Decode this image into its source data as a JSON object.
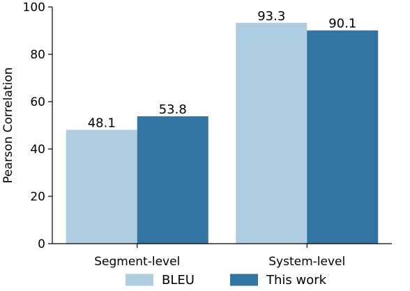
{
  "chart_data": {
    "type": "bar",
    "title": "",
    "xlabel": "",
    "ylabel": "Pearson Correlation",
    "ylim": [
      0,
      100
    ],
    "yticks": [
      0,
      20,
      40,
      60,
      80,
      100
    ],
    "grid": false,
    "legend_position": "bottom",
    "categories": [
      "Segment-level",
      "System-level"
    ],
    "series": [
      {
        "name": "BLEU",
        "color": "#afcde0",
        "values": [
          48.1,
          93.3
        ]
      },
      {
        "name": "This work",
        "color": "#3274a2",
        "values": [
          53.8,
          90.1
        ]
      }
    ]
  }
}
